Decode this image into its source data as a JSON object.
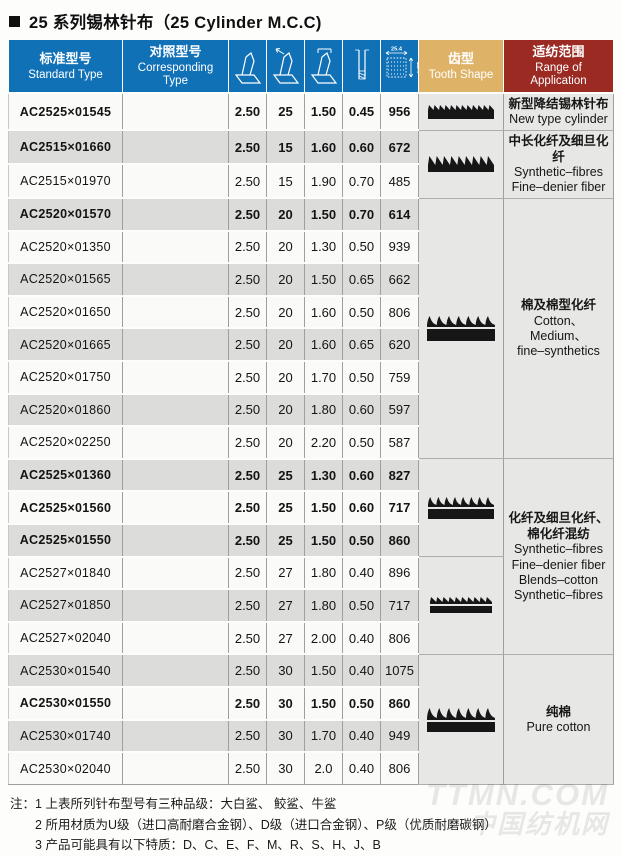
{
  "page": {
    "title": "25 系列锡林针布（25 Cylinder M.C.C)"
  },
  "colors": {
    "header_blue": "#1171b7",
    "tooth_header_tan": "#dfb367",
    "application_header_red": "#9b2a23",
    "row_stripe_gray": "#dcdcda",
    "group_cell_gray": "#e7e7e5",
    "tooth_icon_black": "#161616"
  },
  "table": {
    "headers": {
      "standard_type": {
        "zh": "标准型号",
        "en": "Standard Type"
      },
      "corresponding_type": {
        "zh": "对照型号",
        "en": "Corresponding Type"
      },
      "tooth_shape": {
        "zh": "齿型",
        "en": "Tooth Shape"
      },
      "application": {
        "zh": "适纺范围",
        "en": "Range of Application"
      }
    },
    "dimension_header_label": "25.4",
    "rows": [
      {
        "model": "AC2525×01545",
        "values": [
          "2.50",
          "25",
          "1.50",
          "0.45",
          "956"
        ],
        "bold": true
      },
      {
        "model": "AC2515×01660",
        "values": [
          "2.50",
          "15",
          "1.60",
          "0.60",
          "672"
        ],
        "bold": true
      },
      {
        "model": "AC2515×01970",
        "values": [
          "2.50",
          "15",
          "1.90",
          "0.70",
          "485"
        ],
        "bold": false
      },
      {
        "model": "AC2520×01570",
        "values": [
          "2.50",
          "20",
          "1.50",
          "0.70",
          "614"
        ],
        "bold": true
      },
      {
        "model": "AC2520×01350",
        "values": [
          "2.50",
          "20",
          "1.30",
          "0.50",
          "939"
        ],
        "bold": false
      },
      {
        "model": "AC2520×01565",
        "values": [
          "2.50",
          "20",
          "1.50",
          "0.65",
          "662"
        ],
        "bold": false
      },
      {
        "model": "AC2520×01650",
        "values": [
          "2.50",
          "20",
          "1.60",
          "0.50",
          "806"
        ],
        "bold": false
      },
      {
        "model": "AC2520×01665",
        "values": [
          "2.50",
          "20",
          "1.60",
          "0.65",
          "620"
        ],
        "bold": false
      },
      {
        "model": "AC2520×01750",
        "values": [
          "2.50",
          "20",
          "1.70",
          "0.50",
          "759"
        ],
        "bold": false
      },
      {
        "model": "AC2520×01860",
        "values": [
          "2.50",
          "20",
          "1.80",
          "0.60",
          "597"
        ],
        "bold": false
      },
      {
        "model": "AC2520×02250",
        "values": [
          "2.50",
          "20",
          "2.20",
          "0.50",
          "587"
        ],
        "bold": false
      },
      {
        "model": "AC2525×01360",
        "values": [
          "2.50",
          "25",
          "1.30",
          "0.60",
          "827"
        ],
        "bold": true
      },
      {
        "model": "AC2525×01560",
        "values": [
          "2.50",
          "25",
          "1.50",
          "0.60",
          "717"
        ],
        "bold": true
      },
      {
        "model": "AC2525×01550",
        "values": [
          "2.50",
          "25",
          "1.50",
          "0.50",
          "860"
        ],
        "bold": true
      },
      {
        "model": "AC2527×01840",
        "values": [
          "2.50",
          "27",
          "1.80",
          "0.40",
          "896"
        ],
        "bold": false
      },
      {
        "model": "AC2527×01850",
        "values": [
          "2.50",
          "27",
          "1.80",
          "0.50",
          "717"
        ],
        "bold": false
      },
      {
        "model": "AC2527×02040",
        "values": [
          "2.50",
          "27",
          "2.00",
          "0.40",
          "806"
        ],
        "bold": false
      },
      {
        "model": "AC2530×01540",
        "values": [
          "2.50",
          "30",
          "1.50",
          "0.40",
          "1075"
        ],
        "bold": false
      },
      {
        "model": "AC2530×01550",
        "values": [
          "2.50",
          "30",
          "1.50",
          "0.50",
          "860"
        ],
        "bold": true
      },
      {
        "model": "AC2530×01740",
        "values": [
          "2.50",
          "30",
          "1.70",
          "0.40",
          "949"
        ],
        "bold": false
      },
      {
        "model": "AC2530×02040",
        "values": [
          "2.50",
          "30",
          "2.0",
          "0.40",
          "806"
        ],
        "bold": false
      }
    ],
    "tooth_groups": [
      {
        "start": 0,
        "span": 1,
        "icon": "fine-sawtooth-strip-icon"
      },
      {
        "start": 1,
        "span": 2,
        "icon": "pointed-sawtooth-strip-icon"
      },
      {
        "start": 3,
        "span": 8,
        "icon": "hooked-tooth-strip-large-icon"
      },
      {
        "start": 11,
        "span": 3,
        "icon": "hooked-tooth-strip-medium-icon"
      },
      {
        "start": 14,
        "span": 3,
        "icon": "fine-sawtooth-strip-thin-icon"
      },
      {
        "start": 17,
        "span": 4,
        "icon": "hooked-tooth-strip-wide-icon"
      }
    ],
    "application_groups": [
      {
        "start": 0,
        "span": 1,
        "zh": [
          "新型降结锡林针布"
        ],
        "en": [
          "New type cylinder"
        ]
      },
      {
        "start": 1,
        "span": 2,
        "zh": [
          "中长化纤及细旦化纤"
        ],
        "en": [
          "Synthetic–fibres",
          "Fine–denier fiber"
        ]
      },
      {
        "start": 3,
        "span": 8,
        "zh": [
          "棉及棉型化纤"
        ],
        "en": [
          "Cotton、Medium、",
          "fine–synthetics"
        ]
      },
      {
        "start": 11,
        "span": 6,
        "zh": [
          "化纤及细旦化纤、",
          "棉化纤混纺"
        ],
        "en": [
          "Synthetic–fibres",
          "Fine–denier fiber",
          "Blends–cotton",
          "Synthetic–fibres"
        ]
      },
      {
        "start": 17,
        "span": 4,
        "zh": [
          "纯棉"
        ],
        "en": [
          "Pure  cotton"
        ]
      }
    ]
  },
  "notes": {
    "label": "注：",
    "lines": [
      "1 上表所列针布型号有三种品级：大白鲨、 鲛鲨、牛鲨",
      "2 所用材质为U级（进口高耐磨合金钢）、D级（进口合金钢）、P级（优质耐磨碳钢）",
      "3 产品可能具有以下特质：D、C、E、F、M、R、S、H、J、B"
    ]
  },
  "watermark": {
    "line1": "TTMN.COM",
    "line2": "中国纺机网"
  }
}
